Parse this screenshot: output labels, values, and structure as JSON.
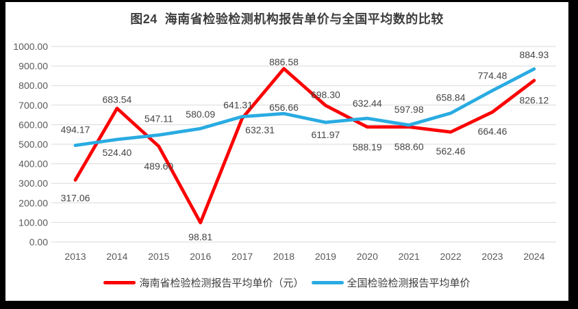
{
  "chart_data": {
    "type": "line",
    "title": "图24  海南省检验检测机构报告单价与全国平均数的比较",
    "categories": [
      "2013",
      "2014",
      "2015",
      "2016",
      "2017",
      "2018",
      "2019",
      "2020",
      "2021",
      "2022",
      "2023",
      "2024"
    ],
    "series": [
      {
        "name": "海南省检验检测报告平均单价（元）",
        "color": "#fb0000",
        "values": [
          317.06,
          683.54,
          489.6,
          98.81,
          632.31,
          886.58,
          698.3,
          588.19,
          588.6,
          562.46,
          664.46,
          826.12
        ]
      },
      {
        "name": "全国检验检测报告平均单价",
        "color": "#29abe2",
        "values": [
          494.17,
          524.4,
          547.11,
          580.09,
          641.31,
          656.66,
          611.97,
          632.44,
          597.98,
          658.84,
          774.48,
          884.93
        ]
      }
    ],
    "xlabel": "",
    "ylabel": "",
    "ylim": [
      0,
      1000
    ],
    "yticks": [
      {
        "value": 0,
        "label": "0.00"
      },
      {
        "value": 100,
        "label": "100.00"
      },
      {
        "value": 200,
        "label": "200.00"
      },
      {
        "value": 300,
        "label": "300.00"
      },
      {
        "value": 400,
        "label": "400.00"
      },
      {
        "value": 500,
        "label": "500.00"
      },
      {
        "value": 600,
        "label": "600.00"
      },
      {
        "value": 700,
        "label": "700.00"
      },
      {
        "value": 800,
        "label": "800.00"
      },
      {
        "value": 900,
        "label": "900.00"
      },
      {
        "value": 1000,
        "label": "1000.00"
      }
    ],
    "grid": true,
    "data_labels": true,
    "data_label_decimals": 2,
    "legend_position": "bottom",
    "label_layout": [
      {
        "dx": [
          0,
          0,
          0,
          0,
          26,
          0,
          0,
          0,
          0,
          0,
          0,
          0
        ],
        "dy": [
          31,
          -8,
          34,
          26,
          22,
          -5,
          -11,
          34,
          34,
          33,
          33,
          34
        ]
      },
      {
        "dx": [
          0,
          0,
          0,
          0,
          -6,
          0,
          0,
          0,
          0,
          0,
          0,
          0
        ],
        "dy": [
          -18,
          24,
          -19,
          -16,
          -12,
          -4,
          23,
          -17,
          -18,
          -18,
          -17,
          -16
        ]
      }
    ],
    "colors": {
      "grid": "#d9d9d9",
      "axis_text": "#595959",
      "data_label_text": "#444444",
      "title_text": "#3d3d3d",
      "frame": "#000000",
      "background": "#ffffff"
    }
  }
}
